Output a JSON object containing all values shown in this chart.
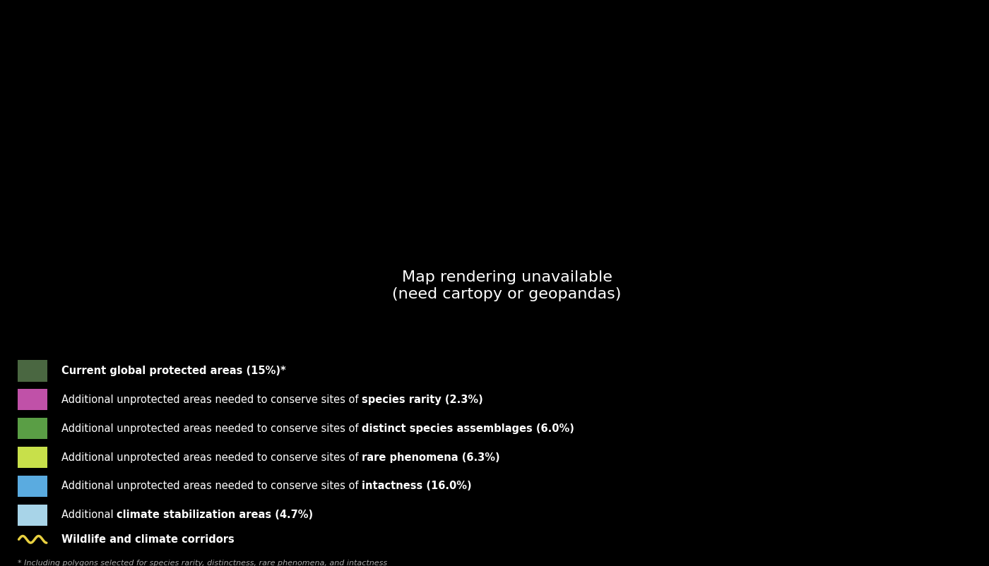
{
  "background_color": "#000000",
  "map_ocean_color": "#3a3a3a",
  "legend_items": [
    {
      "color": "#4a6741",
      "label_normal": "Current global protected areas (15%)*",
      "bold_part": "",
      "first_bold": true
    },
    {
      "color": "#c051a8",
      "label_normal": "Additional unprotected areas needed to conserve sites of ",
      "bold_part": "species rarity (2.3%)",
      "first_bold": false
    },
    {
      "color": "#5a9e45",
      "label_normal": "Additional unprotected areas needed to conserve sites of ",
      "bold_part": "distinct species assemblages (6.0%)",
      "first_bold": false
    },
    {
      "color": "#c8e04a",
      "label_normal": "Additional unprotected areas needed to conserve sites of ",
      "bold_part": "rare phenomena (6.3%)",
      "first_bold": false
    },
    {
      "color": "#5aabe0",
      "label_normal": "Additional unprotected areas needed to conserve sites of ",
      "bold_part": "intactness (16.0%)",
      "first_bold": false
    },
    {
      "color": "#a8d4e8",
      "label_normal": "Additional ",
      "bold_part": "climate stabilization areas (4.7%)",
      "first_bold": false
    }
  ],
  "wildlife_label": "Wildlife and climate corridors",
  "wildlife_color": "#e8d040",
  "footnote": "* Including polygons selected for species rarity, distinctness, rare phenomena, and intactness",
  "text_color": "#ffffff",
  "footnote_color": "#aaaaaa",
  "legend_font_size": 10.5,
  "footnote_font_size": 8.0,
  "land_base_color": "#2d4a28",
  "land_edge_color": "#111111"
}
